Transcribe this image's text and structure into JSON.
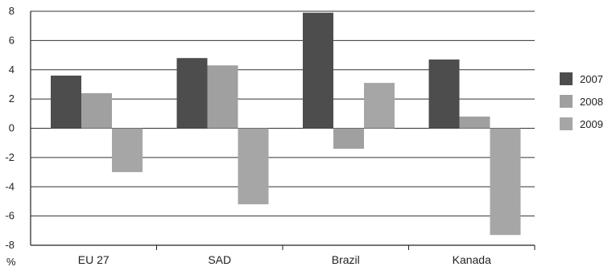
{
  "chart_data": {
    "type": "bar",
    "categories": [
      "EU 27",
      "SAD",
      "Brazil",
      "Kanada"
    ],
    "series": [
      {
        "name": "2007",
        "values": [
          3.6,
          4.8,
          7.9,
          4.7
        ],
        "color": "#4d4d4d"
      },
      {
        "name": "2008",
        "values": [
          2.4,
          4.3,
          -1.4,
          0.8
        ],
        "color": "#a0a0a0"
      },
      {
        "name": "2009",
        "values": [
          -3.0,
          -5.2,
          3.1,
          -7.3
        ],
        "color": "#a6a6a6"
      }
    ],
    "yticks": [
      8,
      6,
      4,
      2,
      0,
      -2,
      -4,
      -6,
      -8
    ],
    "ylim": [
      -8,
      8
    ],
    "y_unit": "%",
    "grid": true,
    "legend_position": "right"
  }
}
